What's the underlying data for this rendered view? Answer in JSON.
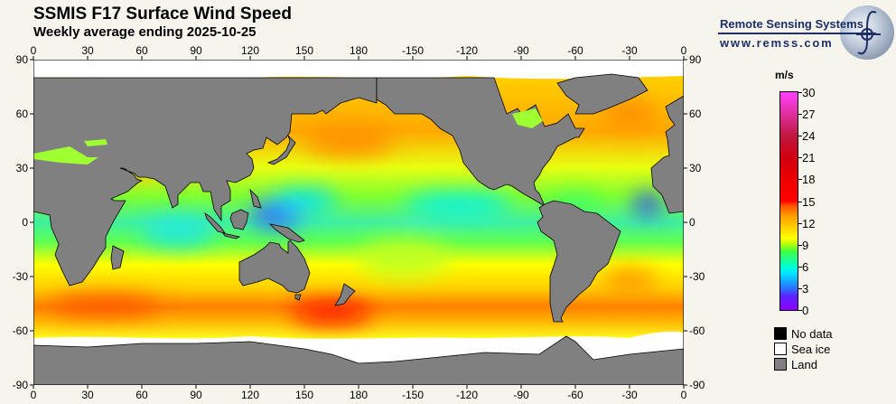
{
  "header": {
    "title": "SSMIS F17 Surface Wind Speed",
    "subtitle": "Weekly average ending 2025-10-25"
  },
  "logo": {
    "organization": "Remote Sensing Systems",
    "url": "www.remss.com"
  },
  "axes": {
    "longitude_labels": [
      "0",
      "30",
      "60",
      "90",
      "120",
      "150",
      "180",
      "-150",
      "-120",
      "-90",
      "-60",
      "-30",
      "0"
    ],
    "latitude_labels": [
      "90",
      "60",
      "30",
      "0",
      "-30",
      "-60",
      "-90"
    ]
  },
  "colorbar": {
    "unit": "m/s",
    "min": 0,
    "max": 30,
    "tick_labels": [
      "0",
      "3",
      "6",
      "9",
      "12",
      "15",
      "18",
      "21",
      "24",
      "27",
      "30"
    ]
  },
  "legend": [
    {
      "label": "No data",
      "color": "#000000"
    },
    {
      "label": "Sea ice",
      "color": "#ffffff"
    },
    {
      "label": "Land",
      "color": "#808080"
    }
  ]
}
